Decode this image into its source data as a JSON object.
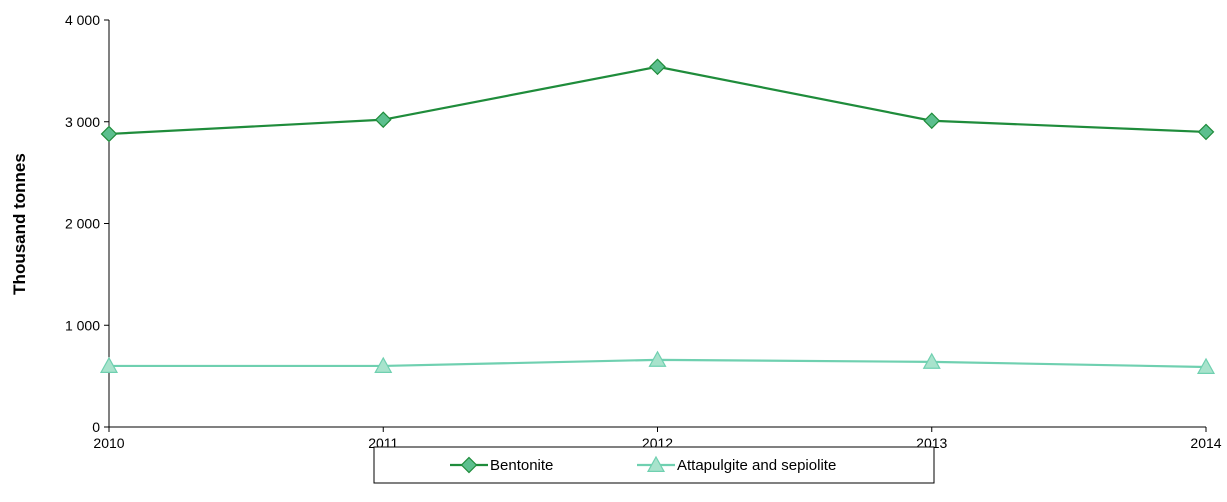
{
  "chart_data": {
    "type": "line",
    "title": "",
    "xlabel": "",
    "ylabel": "Thousand tonnes",
    "categories": [
      "2010",
      "2011",
      "2012",
      "2013",
      "2014"
    ],
    "y_ticks": [
      "0",
      "1 000",
      "2 000",
      "3 000",
      "4 000"
    ],
    "ylim": [
      0,
      4000
    ],
    "grid": false,
    "legend_position": "bottom",
    "series": [
      {
        "name": "Bentonite",
        "values": [
          2880,
          3020,
          3540,
          3010,
          2900
        ],
        "color": "#1f8c3b",
        "marker_fill": "#5cbf8e",
        "marker": "diamond"
      },
      {
        "name": "Attapulgite and sepiolite",
        "values": [
          600,
          600,
          660,
          640,
          590
        ],
        "color": "#6fd0b0",
        "marker_fill": "#a8e3cc",
        "marker": "triangle"
      }
    ]
  }
}
